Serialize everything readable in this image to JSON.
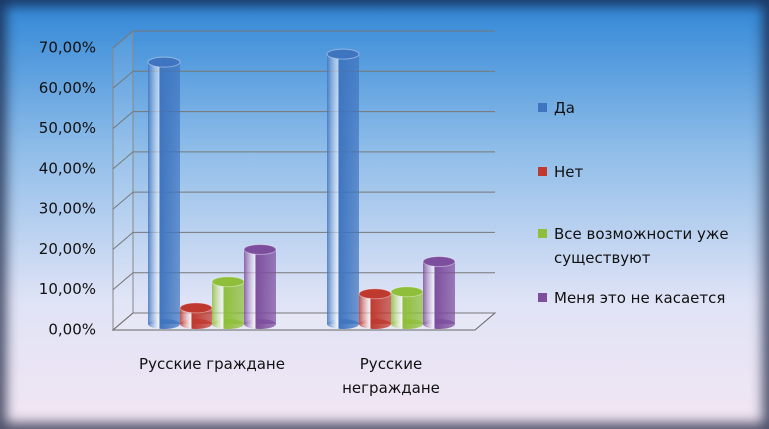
{
  "chart_data": {
    "type": "bar3d",
    "categories": [
      "Русские граждане",
      "Русские неграждане"
    ],
    "series": [
      {
        "name": "Да",
        "color": "#3f75c0",
        "values": [
          65,
          67
        ]
      },
      {
        "name": "Нет",
        "color": "#c0392f",
        "values": [
          4,
          7.5
        ]
      },
      {
        "name": "Все возможности уже существуют",
        "color": "#8fbf3a",
        "values": [
          10.5,
          8
        ]
      },
      {
        "name": "Меня это не касается",
        "color": "#7d4e9e",
        "values": [
          18.5,
          15.5
        ]
      }
    ],
    "ylim": [
      0,
      70
    ],
    "yticks": [
      {
        "value": 0,
        "label": "0,00%"
      },
      {
        "value": 10,
        "label": "10,00%"
      },
      {
        "value": 20,
        "label": "20,00%"
      },
      {
        "value": 30,
        "label": "30,00%"
      },
      {
        "value": 40,
        "label": "40,00%"
      },
      {
        "value": 50,
        "label": "50,00%"
      },
      {
        "value": 60,
        "label": "60,00%"
      },
      {
        "value": 70,
        "label": "70,00%"
      }
    ],
    "grid": true,
    "legend": "right"
  }
}
